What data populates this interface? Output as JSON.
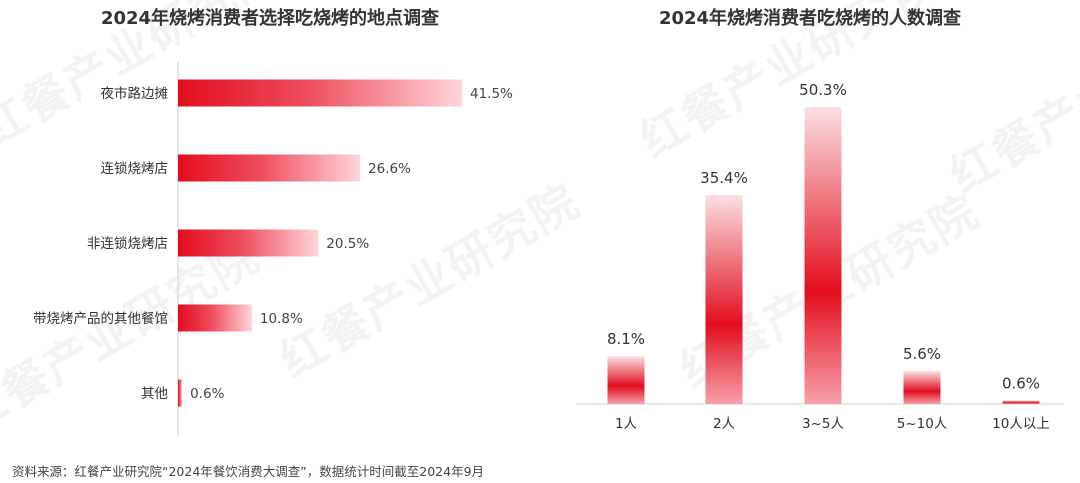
{
  "watermark": {
    "text": "红餐产业研究院"
  },
  "chart_data": [
    {
      "type": "bar",
      "orientation": "horizontal",
      "title": "2024年烧烤消费者选择吃烧烤的地点调查",
      "categories": [
        "夜市路边摊",
        "连锁烧烤店",
        "非连锁烧烤店",
        "带烧烤产品的其他餐馆",
        "其他"
      ],
      "values": [
        41.5,
        26.6,
        20.5,
        10.8,
        0.6
      ],
      "value_labels": [
        "41.5%",
        "26.6%",
        "20.5%",
        "10.8%",
        "0.6%"
      ],
      "unit": "%",
      "xlim": [
        0,
        41.5
      ],
      "grid": false,
      "colors": {
        "start": "#e20d1e",
        "end": "#ffd5da"
      }
    },
    {
      "type": "bar",
      "orientation": "vertical",
      "title": "2024年烧烤消费者吃烧烤的人数调查",
      "categories": [
        "1人",
        "2人",
        "3~5人",
        "5~10人",
        "10人以上"
      ],
      "values": [
        8.1,
        35.4,
        50.3,
        5.6,
        0.6
      ],
      "value_labels": [
        "8.1%",
        "35.4%",
        "50.3%",
        "5.6%",
        "0.6%"
      ],
      "unit": "%",
      "ylim": [
        0,
        50.3
      ],
      "grid": false,
      "colors": {
        "center": "#e20d1e",
        "edge": "#fbe0e3"
      }
    }
  ],
  "source": "资料来源：红餐产业研究院“2024年餐饮消费大调查”，数据统计时间截至2024年9月"
}
